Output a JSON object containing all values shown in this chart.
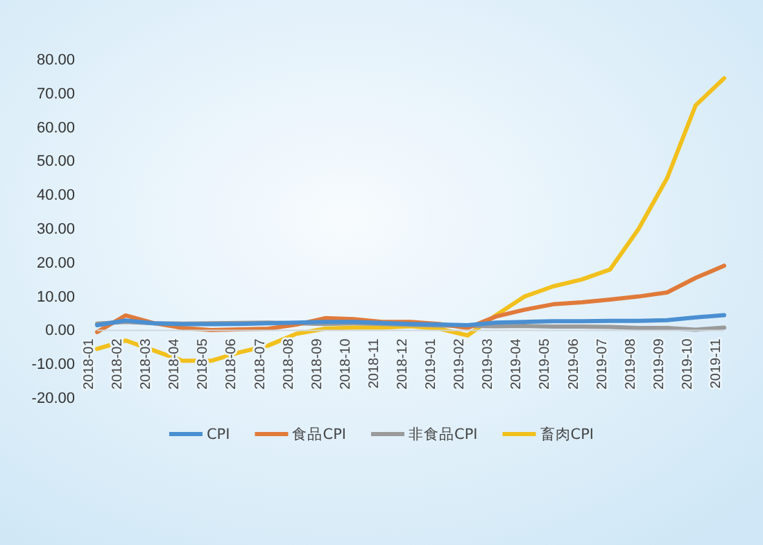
{
  "chart_data": {
    "type": "line",
    "categories": [
      "2018-01",
      "2018-02",
      "2018-03",
      "2018-04",
      "2018-05",
      "2018-06",
      "2018-07",
      "2018-08",
      "2018-09",
      "2018-10",
      "2018-11",
      "2018-12",
      "2019-01",
      "2019-02",
      "2019-03",
      "2019-04",
      "2019-05",
      "2019-06",
      "2019-07",
      "2019-08",
      "2019-09",
      "2019-10",
      "2019-11"
    ],
    "series": [
      {
        "name": "CPI",
        "color": "#4a8fd1",
        "values": [
          1.5,
          2.9,
          2.1,
          1.8,
          1.8,
          1.9,
          2.1,
          2.3,
          2.5,
          2.5,
          2.2,
          1.9,
          1.7,
          1.5,
          2.3,
          2.5,
          2.7,
          2.7,
          2.8,
          2.8,
          3.0,
          3.8,
          4.5
        ]
      },
      {
        "name": "食品CPI",
        "color": "#e07a3a",
        "values": [
          -0.5,
          4.4,
          2.1,
          0.7,
          0.1,
          0.3,
          0.5,
          1.7,
          3.6,
          3.3,
          2.5,
          2.5,
          1.9,
          0.7,
          4.1,
          6.1,
          7.7,
          8.3,
          9.1,
          10.0,
          11.2,
          15.5,
          19.1
        ]
      },
      {
        "name": "非食品CPI",
        "color": "#9a9a9a",
        "values": [
          2.0,
          2.5,
          2.1,
          2.0,
          2.1,
          2.2,
          2.3,
          2.1,
          1.9,
          2.1,
          1.9,
          1.6,
          1.4,
          1.3,
          1.2,
          1.3,
          1.1,
          1.1,
          1.0,
          0.7,
          0.7,
          0.2,
          0.8
        ]
      },
      {
        "name": "畜肉CPI",
        "color": "#f2c01c",
        "values": [
          -5.5,
          -3,
          -6,
          -9,
          -9,
          -6.5,
          -4.5,
          -1,
          0.5,
          0.8,
          0.8,
          1.2,
          0.5,
          -1.5,
          4.5,
          10,
          13,
          15,
          18,
          30,
          45,
          66.5,
          74.5
        ]
      }
    ],
    "ylim": [
      -20,
      80
    ],
    "yticks": [
      {
        "value": -20,
        "label": "-20.00"
      },
      {
        "value": -10,
        "label": "-10.00"
      },
      {
        "value": 0,
        "label": "0.00"
      },
      {
        "value": 10,
        "label": "10.00"
      },
      {
        "value": 20,
        "label": "20.00"
      },
      {
        "value": 30,
        "label": "30.00"
      },
      {
        "value": 40,
        "label": "40.00"
      },
      {
        "value": 50,
        "label": "50.00"
      },
      {
        "value": 60,
        "label": "60.00"
      },
      {
        "value": 70,
        "label": "70.00"
      },
      {
        "value": 80,
        "label": "80.00"
      }
    ],
    "legend": "bottom",
    "line_style": "solid",
    "marker": "none"
  }
}
